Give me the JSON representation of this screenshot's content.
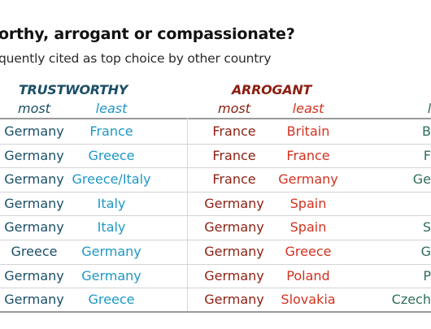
{
  "title": "orthy, arrogant or compassionate?",
  "subtitle": "quently cited as top choice by other country",
  "colors": {
    "trustworthy": "#1a4f66",
    "trustworthy_least": "#1e97c6",
    "arrogant": "#8b1f12",
    "arrogant_least": "#d2321f",
    "compassionate": "#2f6e58"
  },
  "headers": {
    "trustworthy": {
      "label": "TRUSTWORTHY",
      "most": "most",
      "least": "least"
    },
    "arrogant": {
      "label": "ARROGANT",
      "most": "most",
      "least": "least"
    },
    "compassionate": {
      "most": "l"
    }
  },
  "rows": [
    {
      "t_most": "Germany",
      "t_least": "France",
      "a_most": "France",
      "a_least": "Britain",
      "c_most": "B"
    },
    {
      "t_most": "Germany",
      "t_least": "Greece",
      "a_most": "France",
      "a_least": "France",
      "c_most": "F"
    },
    {
      "t_most": "Germany",
      "t_least": "Greece/Italy",
      "a_most": "France",
      "a_least": "Germany",
      "c_most": "Ge"
    },
    {
      "t_most": "Germany",
      "t_least": "Italy",
      "a_most": "Germany",
      "a_least": "Spain",
      "c_most": ""
    },
    {
      "t_most": "Germany",
      "t_least": "Italy",
      "a_most": "Germany",
      "a_least": "Spain",
      "c_most": "S"
    },
    {
      "t_most": "Greece",
      "t_least": "Germany",
      "a_most": "Germany",
      "a_least": "Greece",
      "c_most": "G"
    },
    {
      "t_most": "Germany",
      "t_least": "Germany",
      "a_most": "Germany",
      "a_least": "Poland",
      "c_most": "P"
    },
    {
      "t_most": "Germany",
      "t_least": "Greece",
      "a_most": "Germany",
      "a_least": "Slovakia",
      "c_most": "Czech"
    }
  ]
}
